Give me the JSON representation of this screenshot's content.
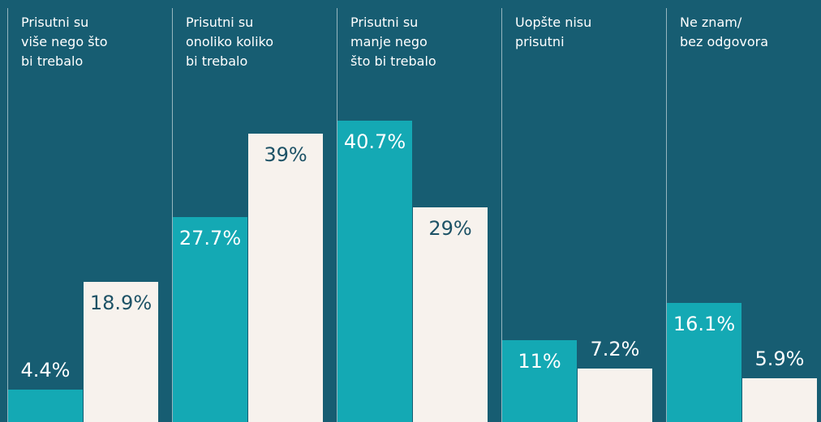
{
  "chart_data": {
    "type": "bar",
    "categories": [
      "Prisutni su\nviše nego što\nbi trebalo",
      "Prisutni su\nonoliko koliko\nbi trebalo",
      "Prisutni su\nmanje nego\nšto bi trebalo",
      "Uopšte nisu\nprisutni",
      "Ne znam/\nbez odgovora"
    ],
    "series": [
      {
        "color": "#14a9b4",
        "values": [
          4.4,
          27.7,
          40.7,
          11,
          16.1
        ],
        "value_labels": [
          "4.4%",
          "27.7%",
          "40.7%",
          "11%",
          "16.1%"
        ]
      },
      {
        "color": "#f7f2ed",
        "values": [
          18.9,
          39,
          29,
          7.2,
          5.9
        ],
        "value_labels": [
          "18.9%",
          "39%",
          "29%",
          "7.2%",
          "5.9%"
        ]
      }
    ],
    "ylim": [
      0,
      57
    ]
  }
}
